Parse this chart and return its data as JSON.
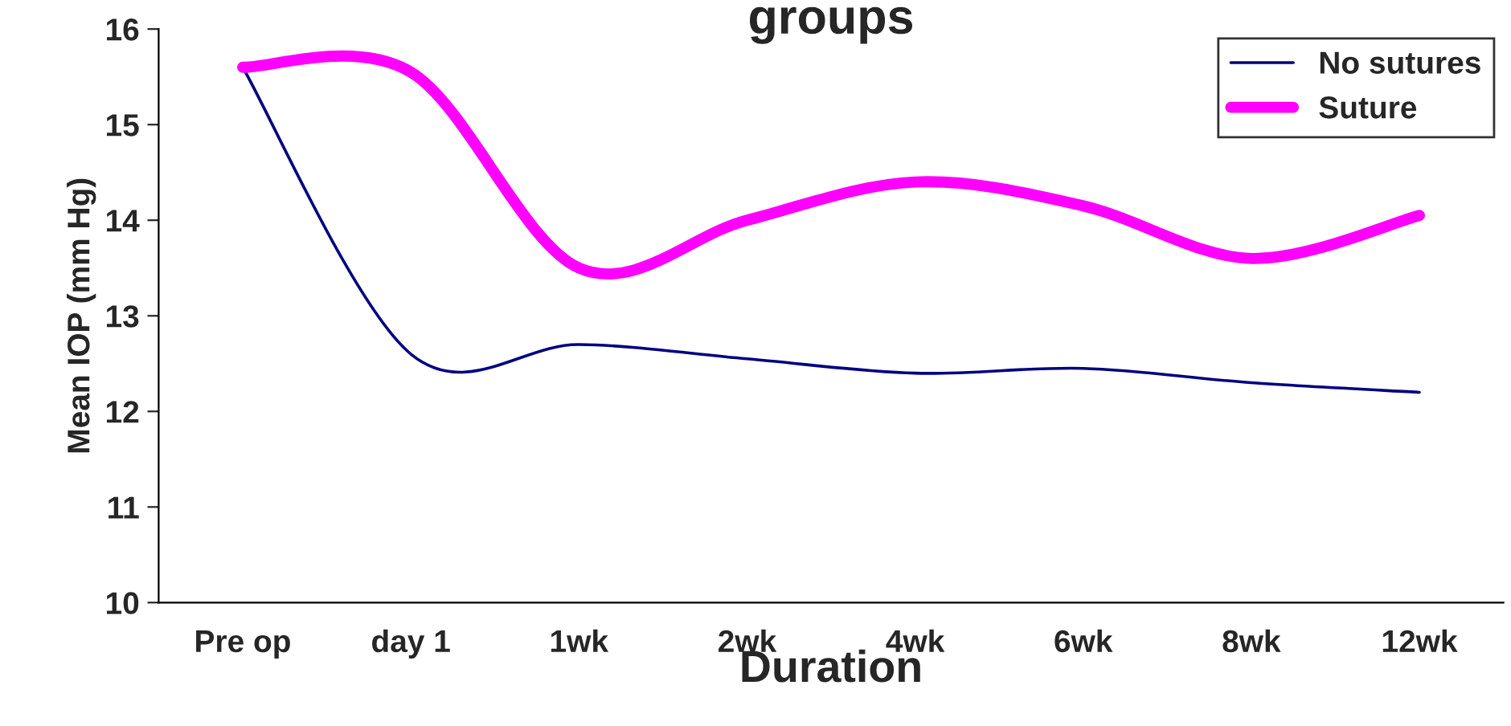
{
  "chart_data": {
    "type": "line",
    "title": "groups",
    "xlabel": "Duration",
    "ylabel": "Mean IOP (mm Hg)",
    "categories": [
      "Pre op",
      "day 1",
      "1wk",
      "2wk",
      "4wk",
      "6wk",
      "8wk",
      "12wk"
    ],
    "series": [
      {
        "name": "No sutures",
        "color": "#000080",
        "values": [
          15.6,
          12.6,
          12.7,
          12.55,
          12.4,
          12.45,
          12.3,
          12.2
        ]
      },
      {
        "name": "Suture",
        "color": "#ff00ff",
        "values": [
          15.6,
          15.55,
          13.5,
          14.0,
          14.4,
          14.15,
          13.6,
          14.05
        ]
      }
    ],
    "ylim": [
      10,
      16
    ],
    "yticks": [
      10,
      11,
      12,
      13,
      14,
      15,
      16
    ],
    "grid": false,
    "legend": "top right",
    "marker": "none",
    "line_style": "solid"
  }
}
